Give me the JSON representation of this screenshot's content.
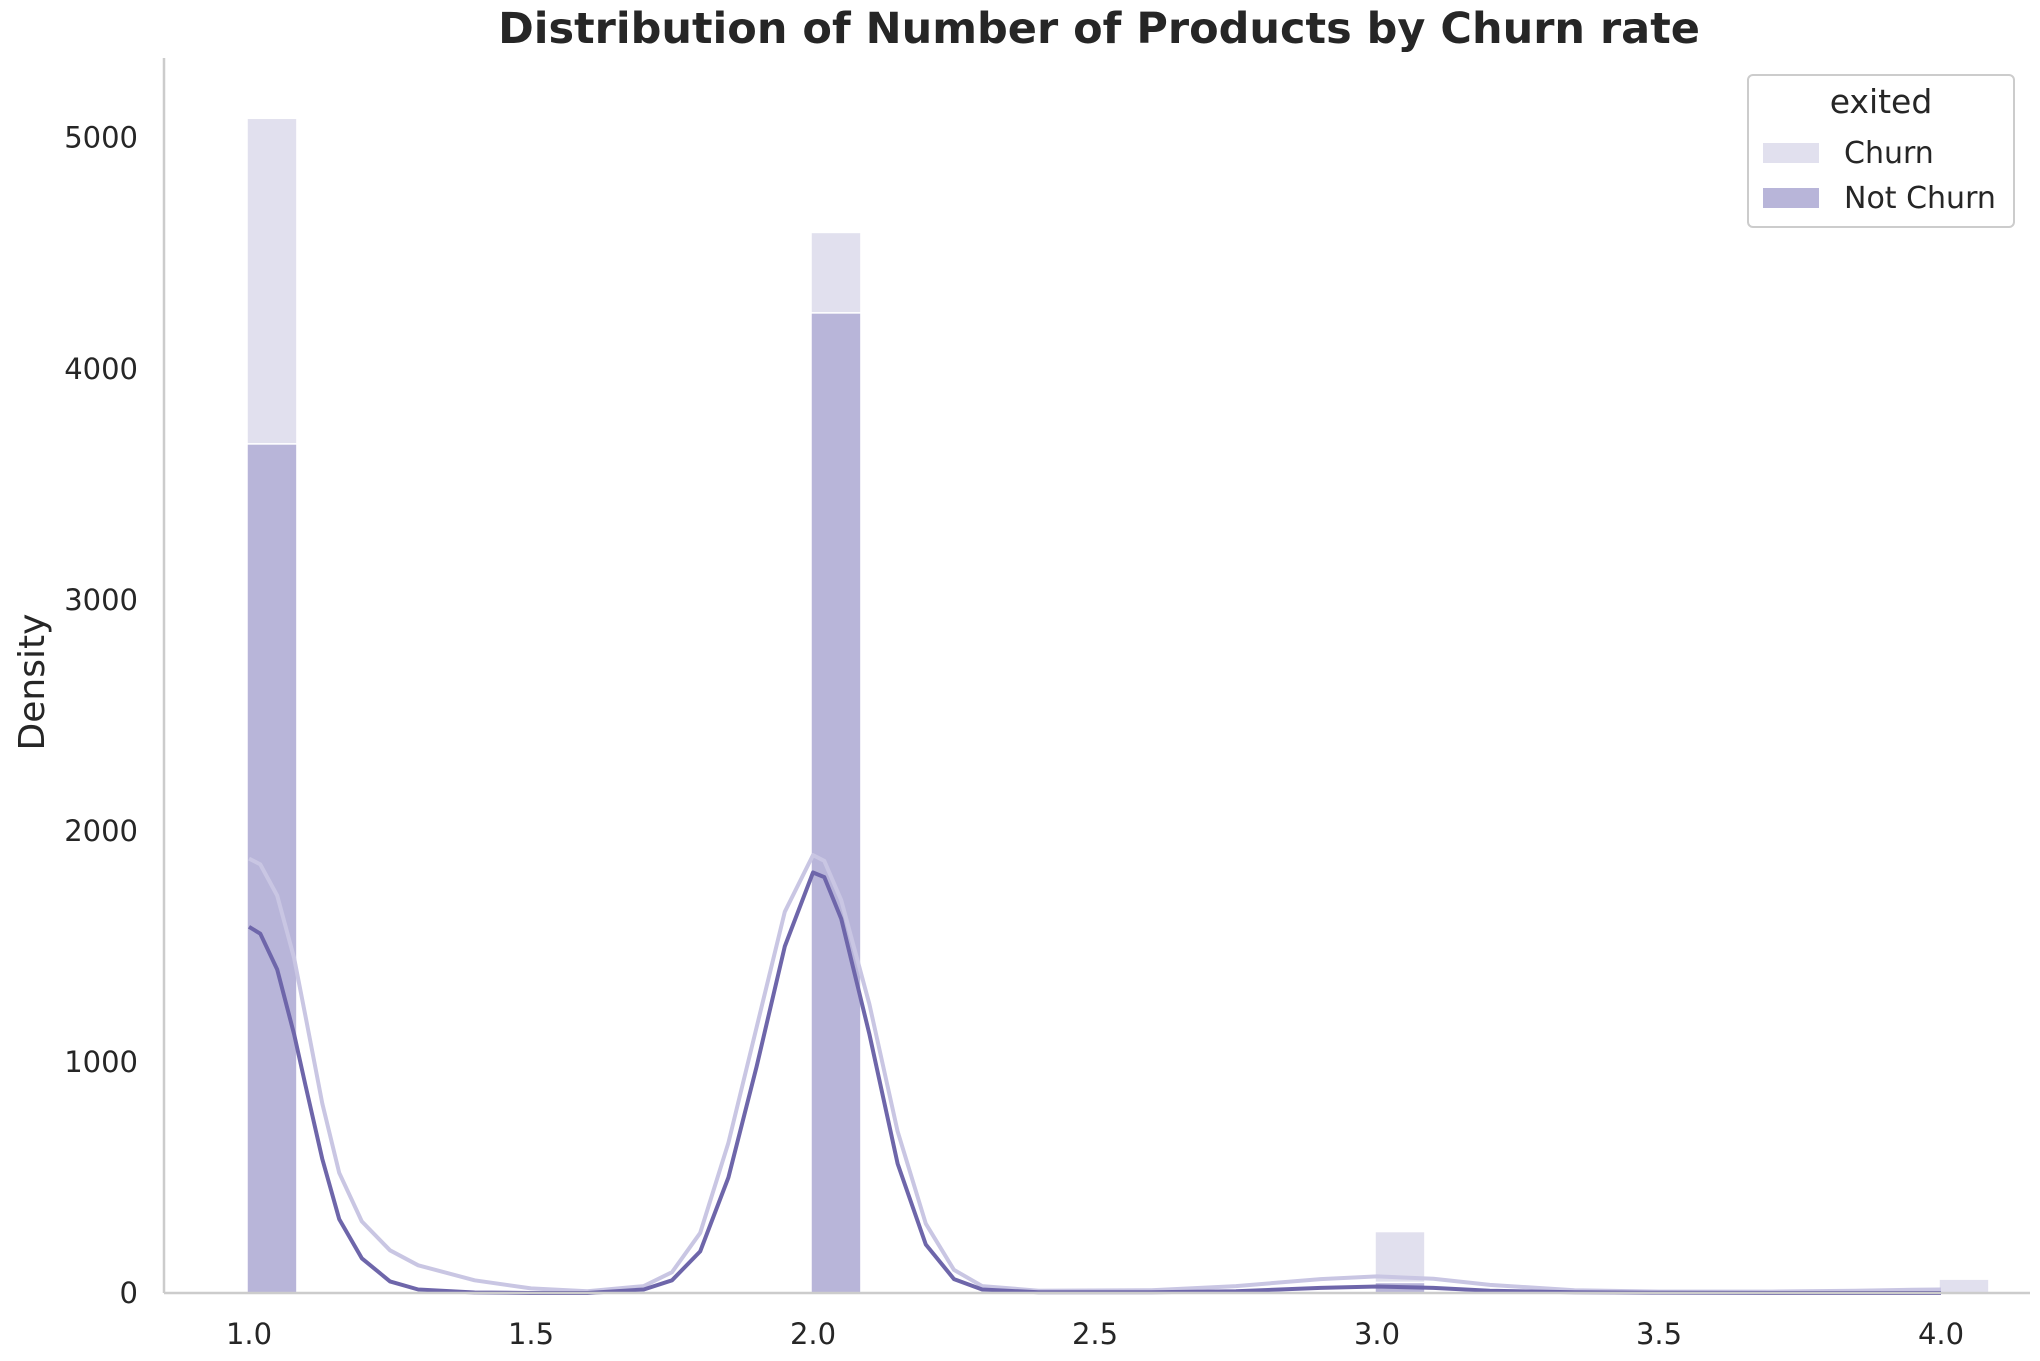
{
  "chart_data": {
    "type": "bar",
    "title": "Distribution of Number of Products by Churn rate",
    "xlabel": "",
    "ylabel": "Density",
    "xlim": [
      0.85,
      4.08
    ],
    "ylim": [
      0,
      5350
    ],
    "x_ticks": [
      "1.0",
      "1.5",
      "2.0",
      "2.5",
      "3.0",
      "3.5",
      "4.0"
    ],
    "y_ticks": [
      "0",
      "1000",
      "2000",
      "3000",
      "4000",
      "5000"
    ],
    "stacked": true,
    "bin_width": 0.085,
    "grid": false,
    "legend": {
      "title": "exited",
      "placement": "top-right"
    },
    "series": [
      {
        "name": "Not Churn",
        "color": "#b8b5d9",
        "kde_color": "#6e66aa",
        "bins": [
          {
            "x": 1.0,
            "value": 3675
          },
          {
            "x": 2.0,
            "value": 4242
          },
          {
            "x": 3.0,
            "value": 46
          },
          {
            "x": 4.0,
            "value": 0
          }
        ]
      },
      {
        "name": "Churn",
        "color": "#e1e0ee",
        "kde_color": "#c9c6e3",
        "bins": [
          {
            "x": 1.0,
            "value": 1409
          },
          {
            "x": 2.0,
            "value": 348
          },
          {
            "x": 3.0,
            "value": 220
          },
          {
            "x": 4.0,
            "value": 60
          }
        ]
      }
    ],
    "kde": [
      {
        "name": "Churn",
        "points": [
          [
            1.0,
            1880
          ],
          [
            1.02,
            1855
          ],
          [
            1.05,
            1720
          ],
          [
            1.08,
            1450
          ],
          [
            1.1,
            1200
          ],
          [
            1.13,
            820
          ],
          [
            1.16,
            520
          ],
          [
            1.2,
            310
          ],
          [
            1.25,
            185
          ],
          [
            1.3,
            120
          ],
          [
            1.4,
            55
          ],
          [
            1.5,
            20
          ],
          [
            1.6,
            8
          ],
          [
            1.7,
            30
          ],
          [
            1.75,
            90
          ],
          [
            1.8,
            260
          ],
          [
            1.85,
            650
          ],
          [
            1.9,
            1150
          ],
          [
            1.95,
            1650
          ],
          [
            2.0,
            1895
          ],
          [
            2.02,
            1870
          ],
          [
            2.05,
            1700
          ],
          [
            2.1,
            1250
          ],
          [
            2.15,
            700
          ],
          [
            2.2,
            300
          ],
          [
            2.25,
            100
          ],
          [
            2.3,
            30
          ],
          [
            2.4,
            10
          ],
          [
            2.6,
            12
          ],
          [
            2.75,
            30
          ],
          [
            2.9,
            60
          ],
          [
            3.0,
            72
          ],
          [
            3.1,
            62
          ],
          [
            3.2,
            35
          ],
          [
            3.35,
            12
          ],
          [
            3.5,
            6
          ],
          [
            3.7,
            6
          ],
          [
            3.85,
            10
          ],
          [
            3.95,
            14
          ],
          [
            4.0,
            15
          ]
        ]
      },
      {
        "name": "Not Churn",
        "points": [
          [
            1.0,
            1585
          ],
          [
            1.02,
            1555
          ],
          [
            1.05,
            1400
          ],
          [
            1.08,
            1120
          ],
          [
            1.1,
            900
          ],
          [
            1.13,
            580
          ],
          [
            1.16,
            320
          ],
          [
            1.2,
            150
          ],
          [
            1.25,
            50
          ],
          [
            1.3,
            15
          ],
          [
            1.4,
            2
          ],
          [
            1.5,
            0
          ],
          [
            1.6,
            0
          ],
          [
            1.7,
            15
          ],
          [
            1.75,
            55
          ],
          [
            1.8,
            180
          ],
          [
            1.85,
            500
          ],
          [
            1.9,
            980
          ],
          [
            1.95,
            1500
          ],
          [
            2.0,
            1820
          ],
          [
            2.02,
            1800
          ],
          [
            2.05,
            1620
          ],
          [
            2.1,
            1120
          ],
          [
            2.15,
            560
          ],
          [
            2.2,
            210
          ],
          [
            2.25,
            60
          ],
          [
            2.3,
            15
          ],
          [
            2.4,
            3
          ],
          [
            2.6,
            3
          ],
          [
            2.75,
            8
          ],
          [
            2.9,
            22
          ],
          [
            3.0,
            28
          ],
          [
            3.1,
            22
          ],
          [
            3.2,
            10
          ],
          [
            3.35,
            3
          ],
          [
            3.5,
            1
          ],
          [
            3.7,
            0
          ],
          [
            4.0,
            0
          ]
        ]
      }
    ]
  }
}
